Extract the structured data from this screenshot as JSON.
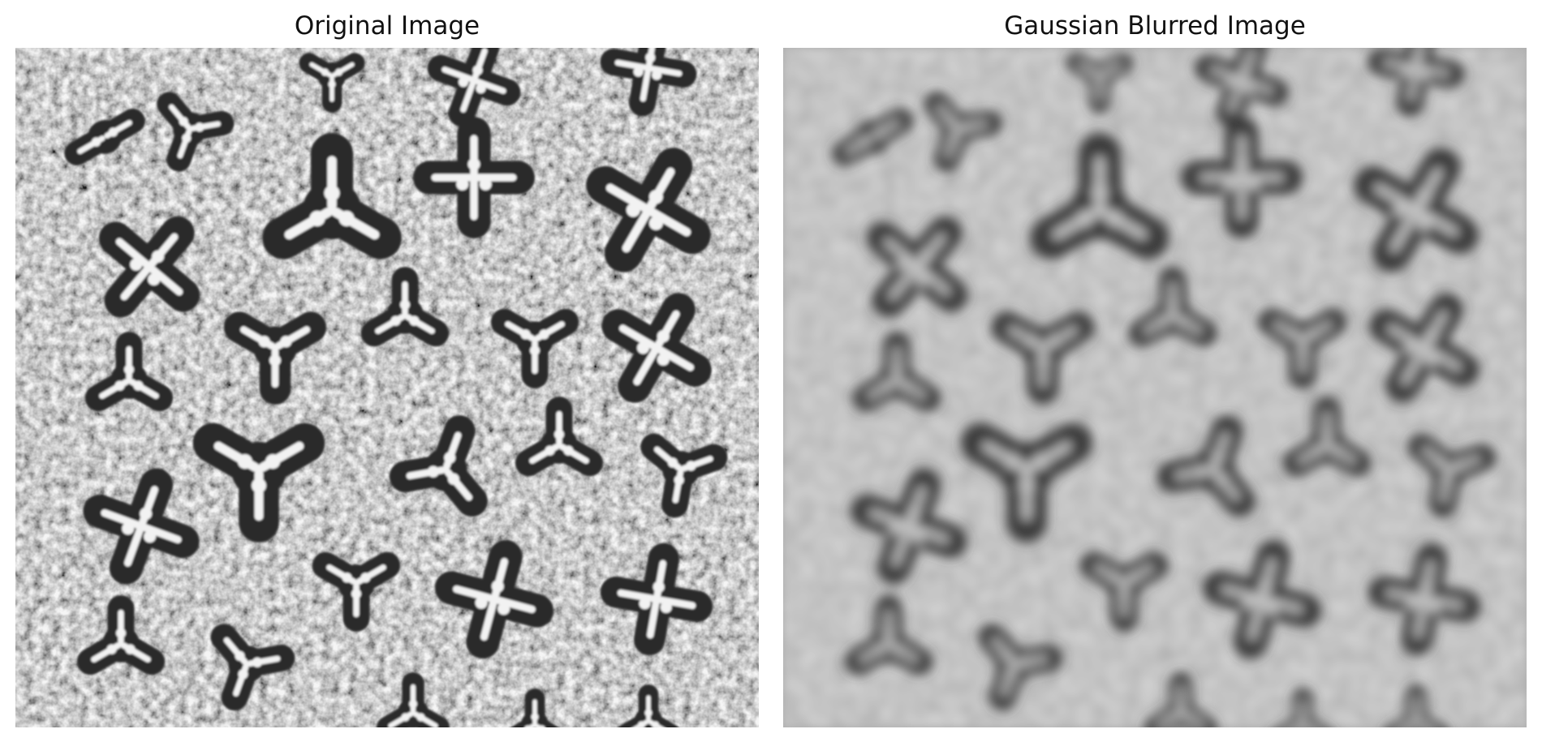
{
  "panels": [
    {
      "title": "Original Image",
      "image": "grayscale micrograph of dark three- and four-armed star-shaped particles on a noisy light-gray textured background",
      "background_color": "#b8b8b8",
      "particle_color": "#2b2b2b",
      "highlight_color": "#f2f2f2",
      "blurred": false
    },
    {
      "title": "Gaussian Blurred Image",
      "image": "same micrograph after Gaussian blur, soft edges, smooth gray background",
      "background_color": "#a9a9a9",
      "particle_color": "#3a3a3a",
      "highlight_color": "#c8c8c8",
      "blurred": true
    }
  ]
}
